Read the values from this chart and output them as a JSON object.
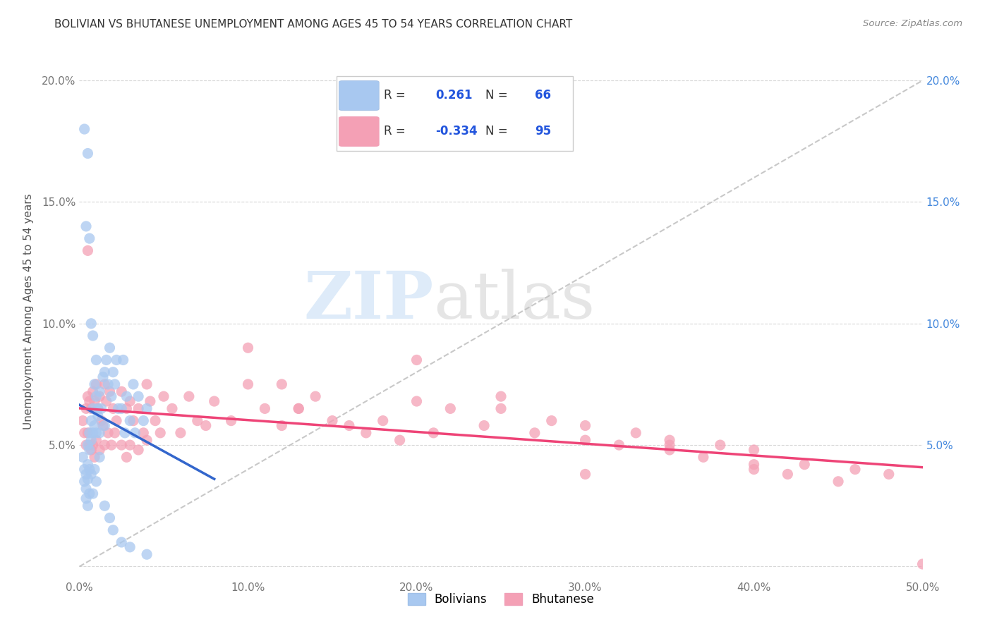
{
  "title": "BOLIVIAN VS BHUTANESE UNEMPLOYMENT AMONG AGES 45 TO 54 YEARS CORRELATION CHART",
  "source": "Source: ZipAtlas.com",
  "ylabel": "Unemployment Among Ages 45 to 54 years",
  "xlim": [
    0.0,
    0.5
  ],
  "ylim": [
    -0.005,
    0.215
  ],
  "x_tick_vals": [
    0.0,
    0.1,
    0.2,
    0.3,
    0.4,
    0.5
  ],
  "x_tick_labels": [
    "0.0%",
    "10.0%",
    "20.0%",
    "30.0%",
    "40.0%",
    "50.0%"
  ],
  "y_tick_vals": [
    0.0,
    0.05,
    0.1,
    0.15,
    0.2
  ],
  "y_tick_labels_left": [
    "",
    "5.0%",
    "10.0%",
    "15.0%",
    "20.0%"
  ],
  "y_tick_labels_right": [
    "",
    "5.0%",
    "10.0%",
    "15.0%",
    "20.0%"
  ],
  "bolivia_color": "#a8c8f0",
  "bhutan_color": "#f4a0b5",
  "bolivia_line_color": "#3366cc",
  "bhutan_line_color": "#ee4477",
  "bolivia_R": 0.261,
  "bolivia_N": 66,
  "bhutan_R": -0.334,
  "bhutan_N": 95,
  "trend_line_color": "#bbbbbb",
  "watermark_zip": "ZIP",
  "watermark_atlas": "atlas",
  "legend_r1": "R = ",
  "legend_v1": "0.261",
  "legend_n1": "N = ",
  "legend_nv1": "66",
  "legend_r2": "R = ",
  "legend_v2": "-0.334",
  "legend_n2": "N = ",
  "legend_nv2": "95",
  "bolivia_x": [
    0.002,
    0.003,
    0.003,
    0.004,
    0.004,
    0.004,
    0.005,
    0.005,
    0.005,
    0.005,
    0.006,
    0.006,
    0.006,
    0.006,
    0.007,
    0.007,
    0.007,
    0.008,
    0.008,
    0.008,
    0.009,
    0.009,
    0.01,
    0.01,
    0.01,
    0.011,
    0.012,
    0.012,
    0.013,
    0.014,
    0.015,
    0.015,
    0.016,
    0.017,
    0.018,
    0.019,
    0.02,
    0.021,
    0.022,
    0.023,
    0.025,
    0.026,
    0.027,
    0.028,
    0.03,
    0.032,
    0.033,
    0.035,
    0.038,
    0.04,
    0.003,
    0.004,
    0.005,
    0.006,
    0.007,
    0.008,
    0.009,
    0.01,
    0.011,
    0.012,
    0.015,
    0.018,
    0.02,
    0.025,
    0.03,
    0.04
  ],
  "bolivia_y": [
    0.045,
    0.04,
    0.035,
    0.038,
    0.032,
    0.028,
    0.05,
    0.042,
    0.036,
    0.025,
    0.055,
    0.048,
    0.04,
    0.03,
    0.06,
    0.052,
    0.038,
    0.065,
    0.055,
    0.03,
    0.058,
    0.04,
    0.07,
    0.055,
    0.035,
    0.062,
    0.072,
    0.045,
    0.065,
    0.078,
    0.08,
    0.058,
    0.085,
    0.075,
    0.09,
    0.07,
    0.08,
    0.075,
    0.085,
    0.065,
    0.065,
    0.085,
    0.055,
    0.07,
    0.06,
    0.075,
    0.055,
    0.07,
    0.06,
    0.065,
    0.18,
    0.14,
    0.17,
    0.135,
    0.1,
    0.095,
    0.075,
    0.085,
    0.065,
    0.055,
    0.025,
    0.02,
    0.015,
    0.01,
    0.008,
    0.005
  ],
  "bhutan_x": [
    0.002,
    0.003,
    0.004,
    0.004,
    0.005,
    0.005,
    0.006,
    0.006,
    0.007,
    0.007,
    0.008,
    0.008,
    0.009,
    0.009,
    0.01,
    0.01,
    0.011,
    0.012,
    0.012,
    0.013,
    0.014,
    0.015,
    0.015,
    0.016,
    0.017,
    0.018,
    0.019,
    0.02,
    0.021,
    0.022,
    0.025,
    0.025,
    0.028,
    0.028,
    0.03,
    0.03,
    0.032,
    0.035,
    0.035,
    0.038,
    0.04,
    0.04,
    0.042,
    0.045,
    0.048,
    0.05,
    0.055,
    0.06,
    0.065,
    0.07,
    0.075,
    0.08,
    0.09,
    0.1,
    0.11,
    0.12,
    0.13,
    0.14,
    0.15,
    0.16,
    0.17,
    0.18,
    0.19,
    0.2,
    0.21,
    0.22,
    0.24,
    0.25,
    0.27,
    0.28,
    0.3,
    0.3,
    0.32,
    0.33,
    0.35,
    0.35,
    0.37,
    0.38,
    0.4,
    0.4,
    0.42,
    0.43,
    0.45,
    0.46,
    0.48,
    0.005,
    0.1,
    0.2,
    0.12,
    0.25,
    0.13,
    0.35,
    0.4,
    0.3,
    0.5
  ],
  "bhutan_y": [
    0.06,
    0.055,
    0.065,
    0.05,
    0.07,
    0.055,
    0.068,
    0.05,
    0.065,
    0.048,
    0.072,
    0.05,
    0.068,
    0.045,
    0.075,
    0.052,
    0.065,
    0.07,
    0.048,
    0.06,
    0.058,
    0.075,
    0.05,
    0.068,
    0.055,
    0.072,
    0.05,
    0.065,
    0.055,
    0.06,
    0.072,
    0.05,
    0.065,
    0.045,
    0.068,
    0.05,
    0.06,
    0.065,
    0.048,
    0.055,
    0.075,
    0.052,
    0.068,
    0.06,
    0.055,
    0.07,
    0.065,
    0.055,
    0.07,
    0.06,
    0.058,
    0.068,
    0.06,
    0.075,
    0.065,
    0.058,
    0.065,
    0.07,
    0.06,
    0.058,
    0.055,
    0.06,
    0.052,
    0.068,
    0.055,
    0.065,
    0.058,
    0.065,
    0.055,
    0.06,
    0.052,
    0.058,
    0.05,
    0.055,
    0.048,
    0.052,
    0.045,
    0.05,
    0.042,
    0.048,
    0.038,
    0.042,
    0.035,
    0.04,
    0.038,
    0.13,
    0.09,
    0.085,
    0.075,
    0.07,
    0.065,
    0.05,
    0.04,
    0.038,
    0.001
  ]
}
